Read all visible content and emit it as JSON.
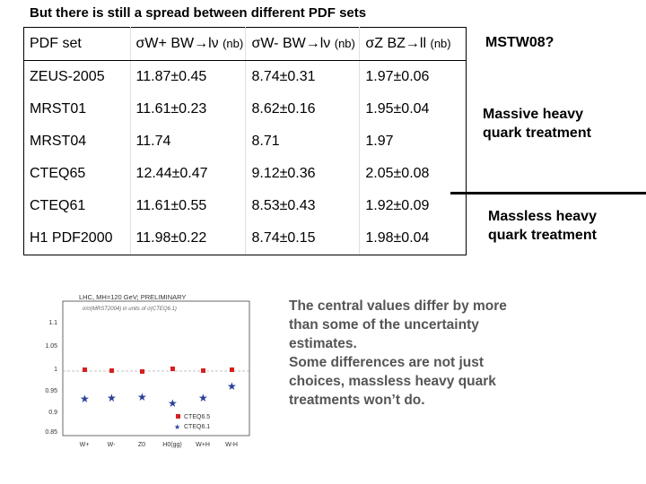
{
  "title": "But there is still a spread between different PDF sets",
  "table": {
    "header": {
      "c0": "PDF set",
      "c1_sym": "σW+ BW→lν",
      "c1_unit": "(nb)",
      "c2_sym": "σW- BW→lν",
      "c2_unit": "(nb)",
      "c3_sym": "σZ BZ→ll",
      "c3_unit": "(nb)"
    },
    "rows": [
      {
        "name": "ZEUS-2005",
        "wplus": "11.87±0.45",
        "wminus": "8.74±0.31",
        "z": "1.97±0.06"
      },
      {
        "name": "MRST01",
        "wplus": "11.61±0.23",
        "wminus": "8.62±0.16",
        "z": "1.95±0.04"
      },
      {
        "name": "MRST04",
        "wplus": "11.74",
        "wminus": "8.71",
        "z": "1.97"
      },
      {
        "name": "CTEQ65",
        "wplus": "12.44±0.47",
        "wminus": "9.12±0.36",
        "z": "2.05±0.08"
      },
      {
        "name": "CTEQ61",
        "wplus": "11.61±0.55",
        "wminus": "8.53±0.43",
        "z": "1.92±0.09"
      },
      {
        "name": "H1 PDF2000",
        "wplus": "11.98±0.22",
        "wminus": "8.74±0.15",
        "z": "1.98±0.04"
      }
    ]
  },
  "side": {
    "mstw": "MSTW08?",
    "massive_1": "Massive heavy",
    "massive_2": "quark treatment",
    "massless_1": "Massless heavy",
    "massless_2": "quark treatment"
  },
  "note": {
    "line1": "The central values differ by more",
    "line2": "than  some of the uncertainty",
    "line3": "estimates.",
    "line4": "Some differences are not just",
    "line5": "choices, massless heavy quark",
    "line6": "treatments won’t do."
  },
  "plot": {
    "title": "LHC, MH=120 GeV; PRELIMINARY",
    "subtitle": "σ/σ(MRST2004) in units of σ(CTEQ6.1)",
    "y_ticks": [
      "1.1",
      "1.05",
      "1",
      "0.95",
      "0.9",
      "0.85"
    ],
    "x_labels": [
      "W+",
      "W-",
      "Z0",
      "H0(gg)",
      "W+H",
      "W-H"
    ],
    "legend": [
      "CTEQ6.5",
      "CTEQ6.1"
    ],
    "colors": {
      "cteq65": "#d62020",
      "cteq61": "#2a3f9a"
    }
  }
}
